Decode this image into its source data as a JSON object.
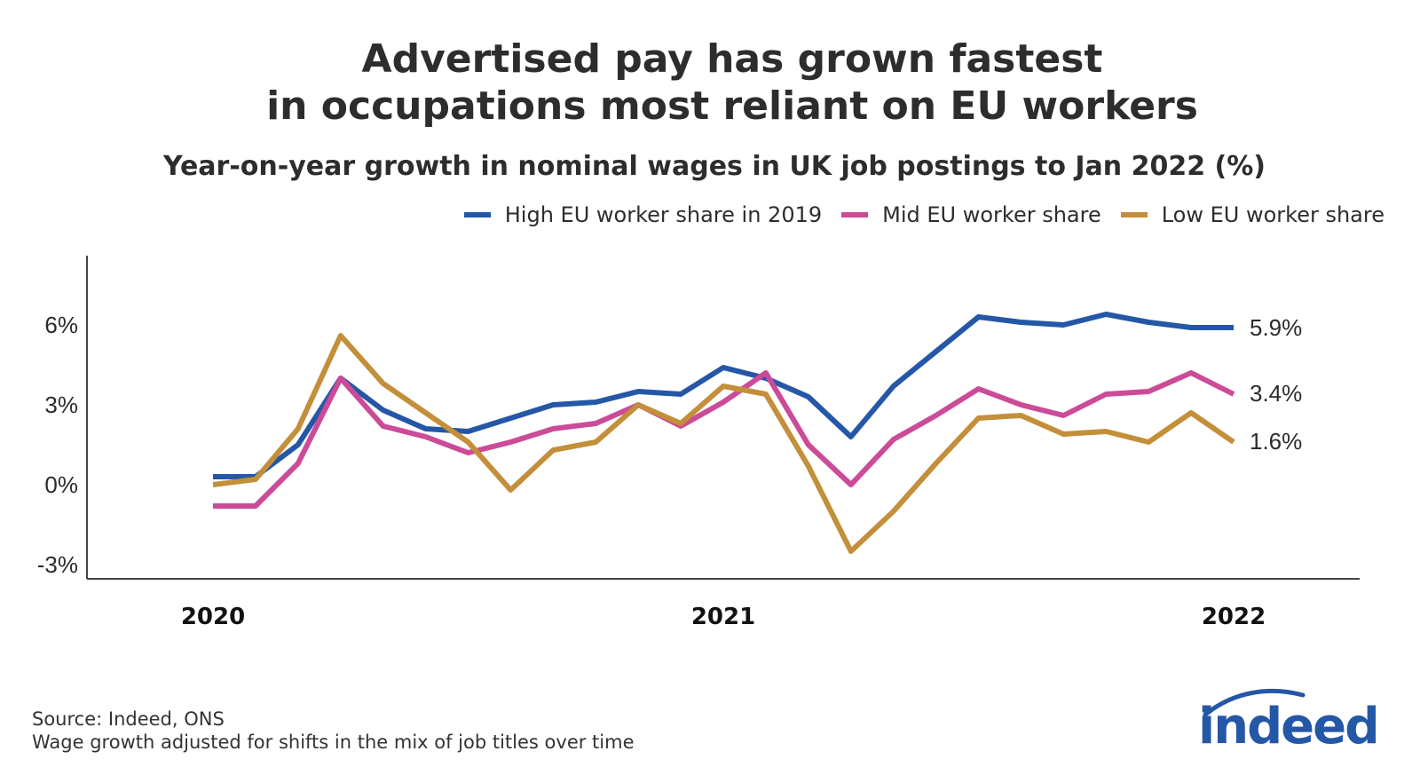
{
  "title_line1": "Advertised pay has grown fastest",
  "title_line2": "in occupations most reliant on EU workers",
  "subtitle": "Year-on-year growth in nominal wages in UK job postings to Jan 2022 (%)",
  "source_line1": "Source: Indeed, ONS",
  "source_line2": "Wage growth adjusted for shifts in the mix of job titles over time",
  "logo_text": "indeed",
  "colors": {
    "high": "#2557a7",
    "mid": "#cc4b98",
    "low": "#c48f3a",
    "logo": "#2557a7"
  },
  "chart_data": {
    "type": "line",
    "title": "Advertised pay has grown fastest in occupations most reliant on EU workers",
    "subtitle": "Year-on-year growth in nominal wages in UK job postings to Jan 2022 (%)",
    "x": [
      "2020-01",
      "2020-02",
      "2020-03",
      "2020-04",
      "2020-05",
      "2020-06",
      "2020-07",
      "2020-08",
      "2020-09",
      "2020-10",
      "2020-11",
      "2020-12",
      "2021-01",
      "2021-02",
      "2021-03",
      "2021-04",
      "2021-05",
      "2021-06",
      "2021-07",
      "2021-08",
      "2021-09",
      "2021-10",
      "2021-11",
      "2021-12",
      "2022-01"
    ],
    "x_tick_labels": [
      "2020",
      "2021",
      "2022"
    ],
    "y_tick_labels": [
      "6%",
      "3%",
      "0%",
      "-3%"
    ],
    "y_ticks": [
      6,
      3,
      0,
      -3
    ],
    "ylim": [
      -3.5,
      8.5
    ],
    "grid": false,
    "legend_position": "top-right",
    "series": [
      {
        "name": "High EU worker share in 2019",
        "color_key": "high",
        "end_label": "5.9%",
        "values": [
          0.3,
          0.3,
          1.5,
          4.0,
          2.8,
          2.1,
          2.0,
          2.5,
          3.0,
          3.1,
          3.5,
          3.4,
          4.4,
          4.0,
          3.3,
          1.8,
          3.7,
          5.0,
          6.3,
          6.1,
          6.0,
          6.4,
          6.1,
          5.9,
          5.9
        ]
      },
      {
        "name": "Mid EU worker share",
        "color_key": "mid",
        "end_label": "3.4%",
        "values": [
          -0.8,
          -0.8,
          0.8,
          4.0,
          2.2,
          1.8,
          1.2,
          1.6,
          2.1,
          2.3,
          3.0,
          2.2,
          3.1,
          4.2,
          1.5,
          0.0,
          1.7,
          2.6,
          3.6,
          3.0,
          2.6,
          3.4,
          3.5,
          4.2,
          3.4
        ]
      },
      {
        "name": "Low EU worker share",
        "color_key": "low",
        "end_label": "1.6%",
        "values": [
          0.0,
          0.2,
          2.1,
          5.6,
          3.8,
          2.7,
          1.6,
          -0.2,
          1.3,
          1.6,
          3.0,
          2.3,
          3.7,
          3.4,
          0.7,
          -2.5,
          -1.0,
          0.8,
          2.5,
          2.6,
          1.9,
          2.0,
          1.6,
          2.7,
          1.6
        ]
      }
    ]
  }
}
